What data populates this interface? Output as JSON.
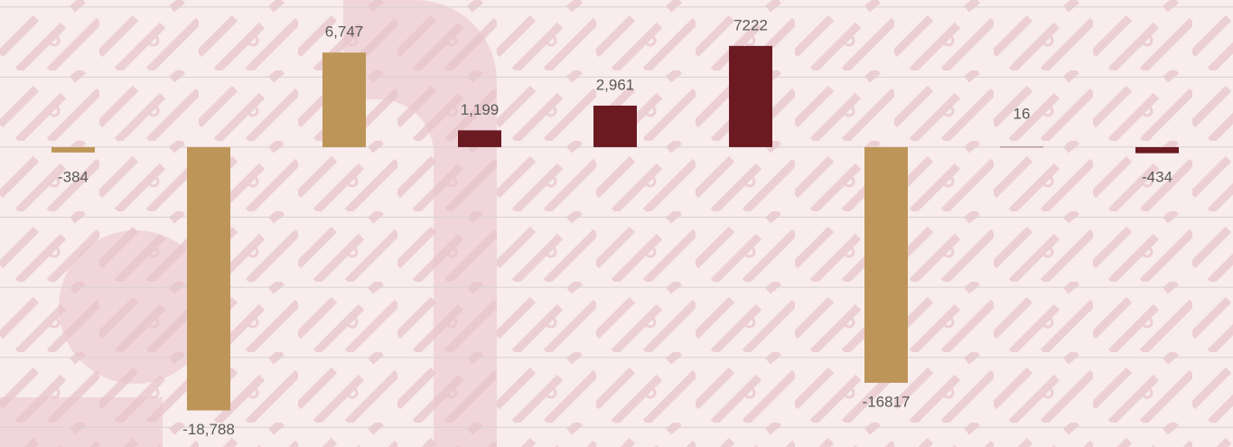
{
  "chart_data": {
    "type": "bar",
    "categories": [
      null,
      null,
      null,
      null,
      null,
      null,
      null,
      null,
      null
    ],
    "values": [
      -384,
      -18788,
      6747,
      1199,
      2961,
      7222,
      -16817,
      16,
      -434
    ],
    "value_labels": [
      "-384",
      "-18,788",
      "6,747",
      "1,199",
      "2,961",
      "7222",
      "-16817",
      "16",
      "-434"
    ],
    "colors": [
      "#bd9558",
      "#bd9558",
      "#bd9558",
      "#6b1a22",
      "#6b1a22",
      "#6b1a22",
      "#bd9558",
      "#6b1a22",
      "#6b1a22"
    ],
    "ylim": [
      -21400,
      10500
    ],
    "yticks": [
      -20000,
      -15000,
      -10000,
      -5000,
      0,
      5000,
      10000
    ],
    "grid": true
  }
}
